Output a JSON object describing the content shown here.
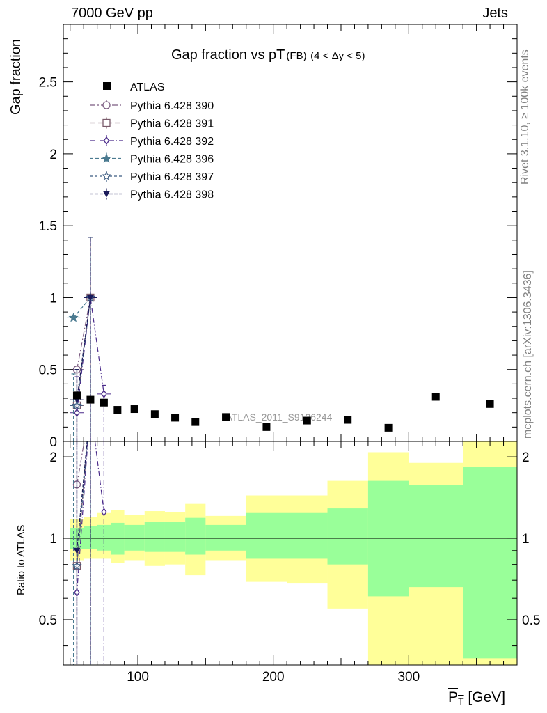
{
  "header": {
    "left": "7000 GeV pp",
    "right": "Jets"
  },
  "side_labels": {
    "rivet": "Rivet 3.1.10, ≥ 100k events",
    "mcplots": "mcplots.cern.ch [arXiv:1306.3436]"
  },
  "chart_data": {
    "type": "scatter",
    "title_main": "Gap fraction vs pT",
    "title_sub": "(FB)",
    "title_cond": "(4 < Δy < 5)",
    "ylabel_top": "Gap fraction",
    "ylabel_bottom": "Ratio to ATLAS",
    "xlabel": "P_T [GeV]",
    "xlabel_main": "P",
    "xlabel_sub": "T",
    "xlabel_unit": "[GeV]",
    "watermark": "ATLAS_2011_S9126244",
    "xlim": [
      45,
      380
    ],
    "ylim_top": [
      0,
      2.9
    ],
    "ylim_bottom": [
      0.34,
      2.28
    ],
    "x_ticks": [
      100,
      200,
      300
    ],
    "y_ticks_top": [
      "0",
      "0.5",
      "1",
      "1.5",
      "2",
      "2.5"
    ],
    "y_ticks_bottom": [
      "0.5",
      "1",
      "2"
    ],
    "atlas": {
      "name": "ATLAS",
      "bins": [
        [
          50,
          60
        ],
        [
          60,
          70
        ],
        [
          70,
          80
        ],
        [
          80,
          90
        ],
        [
          90,
          105
        ],
        [
          105,
          120
        ],
        [
          120,
          135
        ],
        [
          135,
          150
        ],
        [
          150,
          180
        ],
        [
          180,
          210
        ],
        [
          210,
          240
        ],
        [
          240,
          270
        ],
        [
          270,
          300
        ],
        [
          300,
          340
        ],
        [
          340,
          380
        ]
      ],
      "x": [
        55,
        65,
        75,
        85,
        97.5,
        112.5,
        127.5,
        142.5,
        165,
        195,
        225,
        255,
        285,
        320,
        360
      ],
      "y": [
        0.32,
        0.29,
        0.27,
        0.22,
        0.225,
        0.19,
        0.165,
        0.135,
        0.17,
        0.1,
        0.145,
        0.15,
        0.095,
        0.31,
        0.26
      ],
      "band_yellow": [
        [
          0.83,
          1.18
        ],
        [
          0.84,
          1.2
        ],
        [
          0.84,
          1.24
        ],
        [
          0.81,
          1.27
        ],
        [
          0.83,
          1.22
        ],
        [
          0.79,
          1.26
        ],
        [
          0.8,
          1.25
        ],
        [
          0.73,
          1.34
        ],
        [
          0.83,
          1.21
        ],
        [
          0.69,
          1.44
        ],
        [
          0.68,
          1.44
        ],
        [
          0.55,
          1.63
        ],
        [
          0.33,
          2.08
        ],
        [
          0.33,
          1.9
        ],
        [
          0.33,
          2.28
        ]
      ],
      "band_green": [
        [
          0.91,
          1.09
        ],
        [
          0.91,
          1.11
        ],
        [
          0.9,
          1.12
        ],
        [
          0.87,
          1.14
        ],
        [
          0.9,
          1.12
        ],
        [
          0.89,
          1.15
        ],
        [
          0.89,
          1.15
        ],
        [
          0.87,
          1.19
        ],
        [
          0.9,
          1.12
        ],
        [
          0.84,
          1.24
        ],
        [
          0.84,
          1.24
        ],
        [
          0.8,
          1.29
        ],
        [
          0.61,
          1.63
        ],
        [
          0.66,
          1.57
        ],
        [
          0.36,
          1.84
        ]
      ]
    },
    "series": [
      {
        "name": "Pythia 6.428 390",
        "color": "#7a5a80",
        "marker": "circle-open",
        "dash": "8,3,2,3",
        "x": [
          55,
          65
        ],
        "y": [
          0.5,
          1.0
        ],
        "yerr": [
          [
            0.0,
            0.5
          ],
          [
            0.0,
            1.42
          ]
        ],
        "ratio": [
          1.58,
          3.1
        ]
      },
      {
        "name": "Pythia 6.428 391",
        "color": "#7a5a6a",
        "marker": "square-open",
        "dash": "8,4",
        "x": [
          55,
          65
        ],
        "y": [
          0.25,
          1.0
        ],
        "yerr": [
          [
            0.0,
            0.5
          ],
          [
            0.0,
            1.42
          ]
        ],
        "ratio": [
          0.79,
          3.1
        ]
      },
      {
        "name": "Pythia 6.428 392",
        "color": "#4a2a8a",
        "marker": "diamond-open",
        "dash": "7,3,1,3",
        "x": [
          55,
          65,
          75
        ],
        "y": [
          0.2,
          1.0,
          0.33
        ],
        "yerr": [
          [
            0.0,
            0.45
          ],
          [
            0.0,
            1.42
          ],
          [
            0.0,
            0.39
          ]
        ],
        "ratio": [
          0.63,
          3.1,
          1.25
        ]
      },
      {
        "name": "Pythia 6.428 396",
        "color": "#4a7a90",
        "marker": "star-filled",
        "dash": "5,3",
        "x": [
          52.5,
          65
        ],
        "y": [
          0.86,
          1.0
        ],
        "yerr": [
          [
            0.0,
            0.47
          ],
          [
            0.0,
            1.42
          ]
        ],
        "ratio": [
          2.7,
          3.1
        ]
      },
      {
        "name": "Pythia 6.428 397",
        "color": "#3a5a80",
        "marker": "star-open",
        "dash": "4,3",
        "x": [
          55,
          65
        ],
        "y": [
          0.25,
          1.0
        ],
        "yerr": [
          [
            0.0,
            0.5
          ],
          [
            0.0,
            1.42
          ]
        ],
        "ratio": [
          0.79,
          3.1
        ]
      },
      {
        "name": "Pythia 6.428 398",
        "color": "#1a1a5a",
        "marker": "triangle-down",
        "dash": "5,2",
        "x": [
          55,
          65
        ],
        "y": [
          0.29,
          1.0
        ],
        "yerr": [
          [
            0.0,
            0.5
          ],
          [
            0.0,
            1.42
          ]
        ],
        "ratio": [
          0.9,
          3.1
        ]
      }
    ]
  }
}
